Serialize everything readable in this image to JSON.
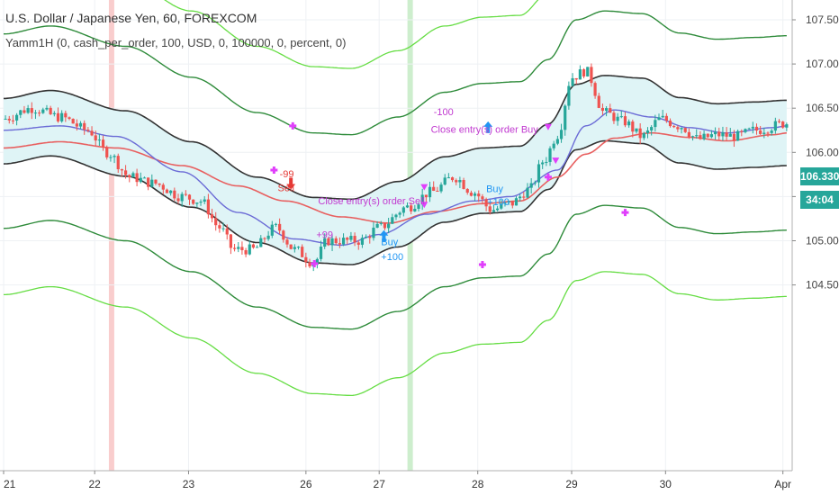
{
  "title": "U.S. Dollar / Japanese Yen, 60, FOREXCOM",
  "indicator": "Yamm1H (0, cash_per_order, 100, USD, 0, 100000, 0, percent, 0)",
  "price_tag": {
    "price": "106.330",
    "countdown": "34:04",
    "price_color": "#26a69a",
    "countdown_color": "#26a69a"
  },
  "colors": {
    "up_candle": "#26a69a",
    "down_candle": "#ef5350",
    "outer_band": "#66dd44",
    "mid_band": "#2e8b3a",
    "inner_band": "#333333",
    "blue_ma": "#6b6bd6",
    "red_ma": "#e86060",
    "band_fill": "#dff4f6",
    "strategy_marker": "#e040fb",
    "buy": "#2196f3",
    "sell": "#e53935"
  },
  "chart_data": {
    "type": "candlestick",
    "title": "U.S. Dollar / Japanese Yen, 60, FOREXCOM",
    "ylim": [
      104.1,
      107.7
    ],
    "y_ticks": [
      "107.500",
      "107.000",
      "106.500",
      "106.000",
      "105.500",
      "105.000",
      "104.500"
    ],
    "x_ticks": [
      "21",
      "22",
      "23",
      "26",
      "27",
      "28",
      "29",
      "30",
      "Apr"
    ],
    "x_range": [
      0,
      8.35
    ],
    "center_line": [
      [
        0,
        106.24
      ],
      [
        0.5,
        106.33
      ],
      [
        1.3,
        106.1
      ],
      [
        2.0,
        105.75
      ],
      [
        2.7,
        105.35
      ],
      [
        3.3,
        105.12
      ],
      [
        3.7,
        105.1
      ],
      [
        4.2,
        105.3
      ],
      [
        4.7,
        105.58
      ],
      [
        5.1,
        105.68
      ],
      [
        5.5,
        105.7
      ],
      [
        5.8,
        105.95
      ],
      [
        6.1,
        106.4
      ],
      [
        6.4,
        106.5
      ],
      [
        6.8,
        106.47
      ],
      [
        7.2,
        106.25
      ],
      [
        7.6,
        106.18
      ],
      [
        8.0,
        106.2
      ],
      [
        8.35,
        106.22
      ]
    ],
    "band_offsets": {
      "inner": 0.37,
      "mid": 1.1,
      "outer": 1.85
    },
    "blue_ma": [
      [
        0,
        106.25
      ],
      [
        0.6,
        106.3
      ],
      [
        1.2,
        106.18
      ],
      [
        1.9,
        105.78
      ],
      [
        2.5,
        105.32
      ],
      [
        3.1,
        105.02
      ],
      [
        3.6,
        104.95
      ],
      [
        4.0,
        105.07
      ],
      [
        4.5,
        105.3
      ],
      [
        5.0,
        105.45
      ],
      [
        5.4,
        105.5
      ],
      [
        5.9,
        105.8
      ],
      [
        6.2,
        106.3
      ],
      [
        6.5,
        106.48
      ],
      [
        6.9,
        106.4
      ],
      [
        7.3,
        106.28
      ],
      [
        7.7,
        106.22
      ],
      [
        8.2,
        106.28
      ],
      [
        8.35,
        106.3
      ]
    ],
    "red_ma": [
      [
        0,
        106.05
      ],
      [
        0.6,
        106.12
      ],
      [
        1.2,
        106.05
      ],
      [
        1.9,
        105.85
      ],
      [
        2.5,
        105.62
      ],
      [
        3.0,
        105.45
      ],
      [
        3.6,
        105.27
      ],
      [
        4.1,
        105.2
      ],
      [
        4.6,
        105.33
      ],
      [
        5.1,
        105.42
      ],
      [
        5.5,
        105.45
      ],
      [
        5.9,
        105.72
      ],
      [
        6.2,
        105.98
      ],
      [
        6.5,
        106.16
      ],
      [
        6.9,
        106.22
      ],
      [
        7.3,
        106.17
      ],
      [
        7.7,
        106.13
      ],
      [
        8.2,
        106.2
      ],
      [
        8.35,
        106.22
      ]
    ],
    "price_path": [
      [
        0,
        106.38
      ],
      [
        0.3,
        106.5
      ],
      [
        0.6,
        106.4
      ],
      [
        0.9,
        106.25
      ],
      [
        1.1,
        106.0
      ],
      [
        1.35,
        105.72
      ],
      [
        1.6,
        105.65
      ],
      [
        1.9,
        105.5
      ],
      [
        2.1,
        105.45
      ],
      [
        2.3,
        105.15
      ],
      [
        2.45,
        104.9
      ],
      [
        2.65,
        104.9
      ],
      [
        2.9,
        105.15
      ],
      [
        3.1,
        104.9
      ],
      [
        3.3,
        104.75
      ],
      [
        3.45,
        105.0
      ],
      [
        3.6,
        105.0
      ],
      [
        3.8,
        105.0
      ],
      [
        4.0,
        105.15
      ],
      [
        4.3,
        105.38
      ],
      [
        4.55,
        105.55
      ],
      [
        4.8,
        105.72
      ],
      [
        5.0,
        105.55
      ],
      [
        5.2,
        105.35
      ],
      [
        5.4,
        105.42
      ],
      [
        5.6,
        105.58
      ],
      [
        5.75,
        105.9
      ],
      [
        5.9,
        106.2
      ],
      [
        6.05,
        106.85
      ],
      [
        6.2,
        106.92
      ],
      [
        6.4,
        106.45
      ],
      [
        6.6,
        106.35
      ],
      [
        6.8,
        106.18
      ],
      [
        7.0,
        106.38
      ],
      [
        7.2,
        106.3
      ],
      [
        7.4,
        106.15
      ],
      [
        7.6,
        106.2
      ],
      [
        7.8,
        106.18
      ],
      [
        8.0,
        106.25
      ],
      [
        8.35,
        106.33
      ]
    ],
    "vertical_highlights": [
      {
        "x": 1.15,
        "color": "#f8c8c8"
      },
      {
        "x": 4.33,
        "color": "#c8ecc8"
      }
    ],
    "strategy_markers": [
      {
        "x": 3.08,
        "y": 106.3
      },
      {
        "x": 2.88,
        "y": 105.8
      },
      {
        "x": 3.31,
        "y": 104.74
      },
      {
        "x": 5.1,
        "y": 104.73
      },
      {
        "x": 5.8,
        "y": 105.72
      },
      {
        "x": 6.62,
        "y": 105.32
      }
    ],
    "annotations": [
      {
        "x": 2.94,
        "y": 105.72,
        "text": "-99",
        "color": "#e53935"
      },
      {
        "x": 2.92,
        "y": 105.56,
        "text": "Sell",
        "color": "#e53935"
      },
      {
        "x": 3.35,
        "y": 105.41,
        "text": "Close entry(s) order Sell",
        "color": "#c13ad0"
      },
      {
        "x": 3.33,
        "y": 105.03,
        "text": "+99",
        "color": "#c13ad0"
      },
      {
        "x": 4.02,
        "y": 104.95,
        "text": "Buy",
        "color": "#2196f3"
      },
      {
        "x": 4.02,
        "y": 104.78,
        "text": "+100",
        "color": "#2196f3"
      },
      {
        "x": 4.58,
        "y": 106.42,
        "text": "-100",
        "color": "#c13ad0"
      },
      {
        "x": 4.55,
        "y": 106.22,
        "text": "Close entry(s) order Buy",
        "color": "#c13ad0"
      },
      {
        "x": 5.14,
        "y": 105.55,
        "text": "Buy",
        "color": "#2196f3"
      },
      {
        "x": 5.15,
        "y": 105.4,
        "text": "+100",
        "color": "#2196f3"
      }
    ],
    "arrows": [
      {
        "x": 3.06,
        "y": 105.58,
        "dir": "down",
        "color": "#e53935"
      },
      {
        "x": 4.05,
        "y": 105.12,
        "dir": "up",
        "color": "#2196f3"
      },
      {
        "x": 5.16,
        "y": 106.35,
        "dir": "up",
        "color": "#2196f3"
      }
    ]
  }
}
